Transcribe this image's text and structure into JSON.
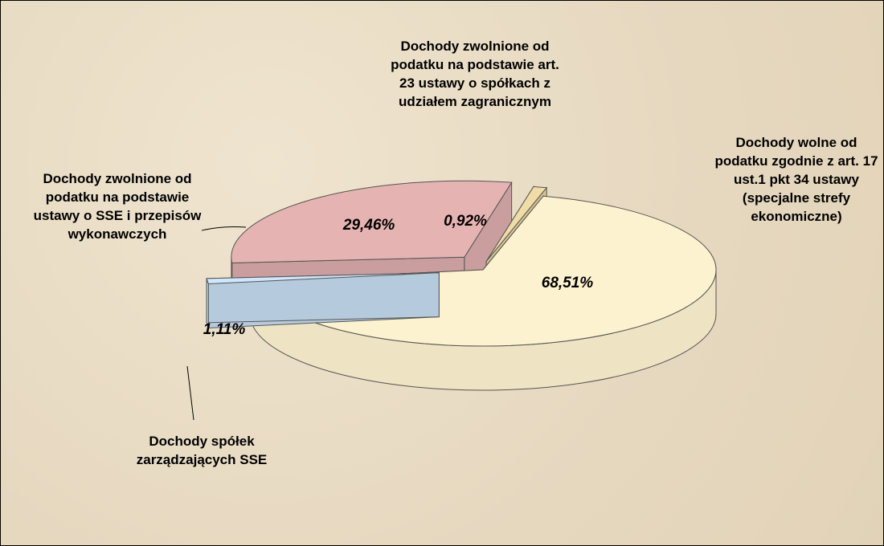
{
  "chart_data": {
    "type": "pie",
    "categories": [
      "Dochody wolne od podatku zgodnie z art. 17 ust.1 pkt 34 ustawy (specjalne strefy ekonomiczne)",
      "Dochody spółek zarządzających SSE",
      "Dochody zwolnione od podatku na podstawie ustawy o SSE i przepisów wykonawczych",
      "Dochody zwolnione od podatku na podstawie art. 23 ustawy o spółkach z udziałem zagranicznym"
    ],
    "values": [
      68.51,
      1.11,
      29.46,
      0.92
    ],
    "value_labels": [
      "68,51%",
      "1,11%",
      "29,46%",
      "0,92%"
    ],
    "colors": [
      "#fdf2cf",
      "#cfe6fb",
      "#e6b3b3",
      "#f0dca6"
    ]
  }
}
